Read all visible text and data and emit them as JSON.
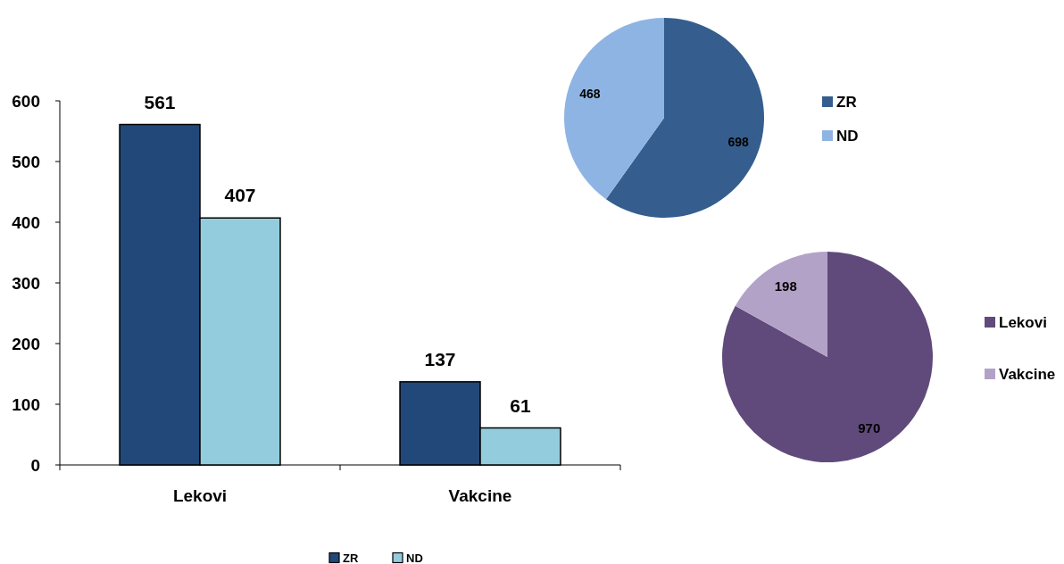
{
  "chart_data": [
    {
      "type": "bar",
      "categories": [
        "Lekovi",
        "Vakcine"
      ],
      "series": [
        {
          "name": "ZR",
          "color": "#22487a",
          "values": [
            561,
            137
          ]
        },
        {
          "name": "ND",
          "color": "#93cddd",
          "values": [
            407,
            61
          ]
        }
      ],
      "ylim": [
        0,
        600
      ],
      "yticks": [
        0,
        100,
        200,
        300,
        400,
        500,
        600
      ],
      "data_labels": true,
      "legend": "bottom"
    },
    {
      "type": "pie",
      "categories": [
        "ZR",
        "ND"
      ],
      "values": [
        698,
        468
      ],
      "colors": [
        "#355e8e",
        "#8eb4e3"
      ],
      "data_labels": true,
      "legend": "right"
    },
    {
      "type": "pie",
      "categories": [
        "Lekovi",
        "Vakcine"
      ],
      "values": [
        970,
        198
      ],
      "colors": [
        "#604a7b",
        "#b3a2c7"
      ],
      "data_labels": true,
      "legend": "right"
    }
  ]
}
